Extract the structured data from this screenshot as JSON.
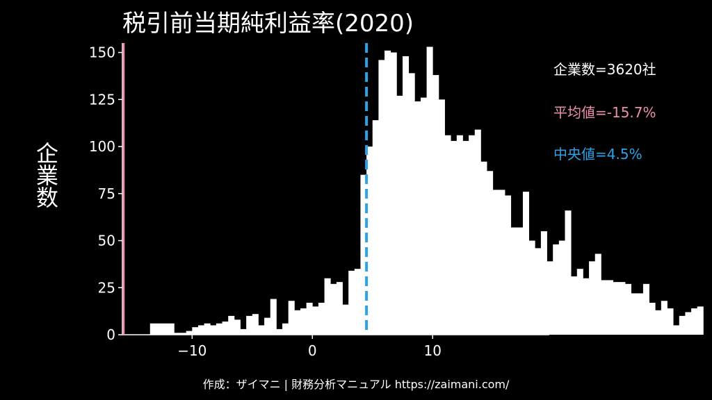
{
  "title": "税引前当期純利益率(2020)",
  "stats": {
    "count": "企業数=3620社",
    "mean": "平均値=-15.7%",
    "median": "中央値=4.5%"
  },
  "footer": "作成：ザイマニ | 財務分析マニュアル https://zaimani.com/",
  "colors": {
    "background": "#000000",
    "bars": "#ffffff",
    "mean": "#ef8fae",
    "median": "#2aa3ea"
  },
  "chart_data": {
    "type": "bar",
    "title": "税引前当期純利益率(2020)",
    "ylabel": "企業数",
    "xunit": "(%)",
    "xlim": [
      -15.8,
      19.7
    ],
    "ylim": [
      0,
      155
    ],
    "xticks": [
      -10,
      0,
      10
    ],
    "xtick_labels": [
      "−10",
      "0",
      "10"
    ],
    "yticks": [
      0,
      25,
      50,
      75,
      100,
      125,
      150
    ],
    "bin_width": 0.5,
    "bin_start": -13.5,
    "values": [
      6,
      6,
      6,
      6,
      1,
      1,
      2,
      4,
      5,
      6,
      5,
      6,
      7,
      10,
      8,
      3,
      10,
      11,
      5,
      9,
      19,
      3,
      6,
      18,
      13,
      14,
      17,
      15,
      17,
      30,
      27,
      28,
      16,
      34,
      35,
      85,
      100,
      114,
      146,
      151,
      150,
      127,
      148,
      139,
      124,
      126,
      153,
      138,
      125,
      106,
      103,
      106,
      103,
      106,
      109,
      92,
      87,
      77,
      77,
      74,
      57,
      57,
      76,
      50,
      46,
      55,
      39,
      48,
      50,
      66,
      31,
      35,
      30,
      39,
      43,
      29,
      29,
      28,
      28,
      27,
      22,
      22,
      27,
      17,
      13,
      18,
      14,
      5,
      10,
      12,
      14,
      15
    ],
    "mean": -15.7,
    "median": 4.5,
    "annotations": [
      "企業数=3620社",
      "平均値=-15.7%",
      "中央値=4.5%"
    ]
  }
}
